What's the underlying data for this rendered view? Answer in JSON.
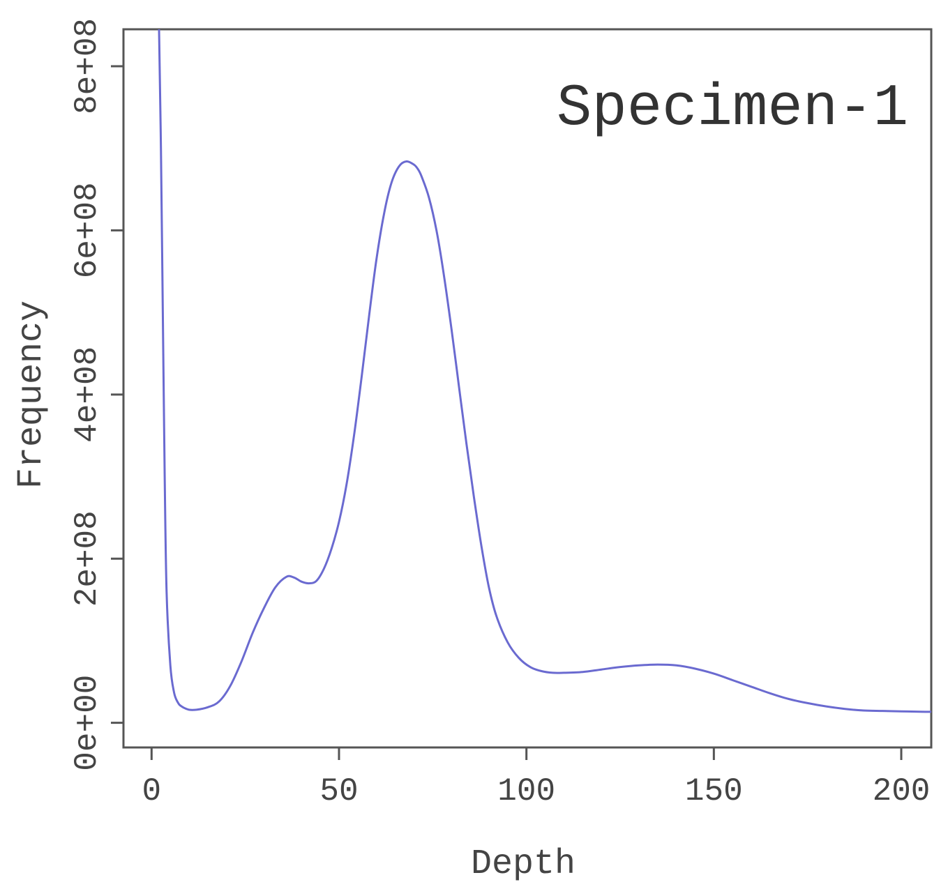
{
  "chart_data": {
    "type": "line",
    "title": "",
    "annotation": "Specimen-1",
    "xlabel": "Depth",
    "ylabel": "Frequency",
    "xlim": [
      -7.5,
      208
    ],
    "ylim": [
      -30000000,
      845000000
    ],
    "x_ticks": [
      0,
      50,
      100,
      150,
      200
    ],
    "x_tick_labels": [
      "0",
      "50",
      "100",
      "150",
      "200"
    ],
    "y_ticks": [
      0,
      200000000,
      400000000,
      600000000,
      800000000
    ],
    "y_tick_labels": [
      "0e+00",
      "2e+08",
      "4e+08",
      "6e+08",
      "8e+08"
    ],
    "grid": false,
    "series": [
      {
        "color": "#6a6ad0",
        "x": [
          2,
          2.5,
          3,
          3.5,
          4,
          5,
          6,
          7,
          8,
          10,
          12,
          15,
          18,
          21,
          24,
          27,
          30,
          33,
          36,
          38,
          40,
          42,
          44,
          46,
          48,
          50,
          52,
          54,
          56,
          58,
          60,
          62,
          64,
          66,
          68,
          70,
          71,
          72,
          74,
          76,
          78,
          80,
          82,
          84,
          86,
          88,
          90,
          92,
          95,
          98,
          101,
          104,
          107,
          110,
          115,
          120,
          125,
          130,
          135,
          140,
          145,
          150,
          155,
          160,
          165,
          170,
          175,
          180,
          185,
          190,
          195,
          200,
          205,
          208
        ],
        "y": [
          845000000,
          700000000,
          500000000,
          300000000,
          160000000,
          70000000,
          37000000,
          25000000,
          20000000,
          16000000,
          16000000,
          19000000,
          26000000,
          45000000,
          75000000,
          110000000,
          140000000,
          165000000,
          178000000,
          177000000,
          172000000,
          170000000,
          173000000,
          188000000,
          212000000,
          245000000,
          290000000,
          350000000,
          420000000,
          495000000,
          565000000,
          620000000,
          658000000,
          678000000,
          684000000,
          680000000,
          675000000,
          666000000,
          640000000,
          600000000,
          545000000,
          480000000,
          410000000,
          340000000,
          275000000,
          215000000,
          165000000,
          130000000,
          98000000,
          79000000,
          68000000,
          63000000,
          61000000,
          61000000,
          62000000,
          65000000,
          68000000,
          70000000,
          71000000,
          70000000,
          66000000,
          60000000,
          52000000,
          44000000,
          36000000,
          29000000,
          24000000,
          20000000,
          17000000,
          15000000,
          14500000,
          14000000,
          13500000,
          13500000
        ]
      }
    ]
  }
}
